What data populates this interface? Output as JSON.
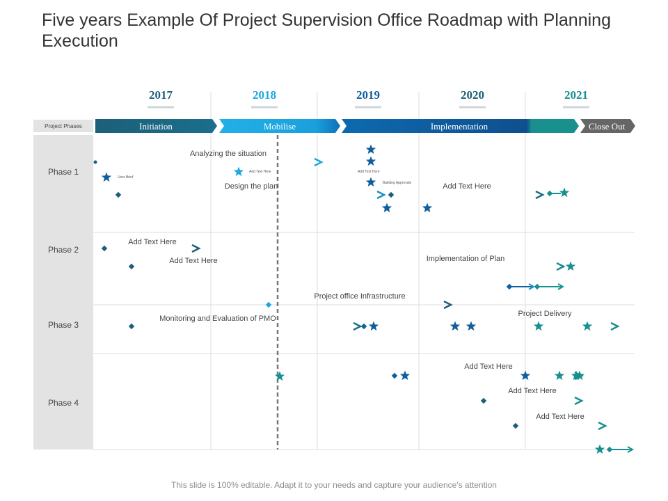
{
  "title": "Five years Example Of Project Supervision Office  Roadmap with Planning Execution",
  "footer": "This slide is 100% editable. Adapt it to your needs and capture your audience's attention",
  "header_label": "Project Phases",
  "colors": {
    "dark_teal": "#1d5f78",
    "light_blue": "#1ea7e0",
    "royal_blue": "#0f5f9e",
    "teal": "#18908f",
    "gray": "#666666",
    "row_label_bg": "#e3e3e4",
    "grid": "#dddddd",
    "today_line": "#777777"
  },
  "years": [
    {
      "label": "2017",
      "color": "#1d5f78"
    },
    {
      "label": "2018",
      "color": "#1ea7e0"
    },
    {
      "label": "2019",
      "color": "#0f5f9e"
    },
    {
      "label": "2020",
      "color": "#1d5f78"
    },
    {
      "label": "2021",
      "color": "#18908f"
    }
  ],
  "phase_bars": [
    {
      "label": "Initiation",
      "color": "#1d5f78"
    },
    {
      "label": "Mobilise",
      "color": "#1ea7e0"
    },
    {
      "label": "Implementation",
      "color": "#0f5f9e"
    },
    {
      "label": "Close Out",
      "color": "#666666"
    }
  ],
  "rows": [
    {
      "label": "Phase 1"
    },
    {
      "label": "Phase 2"
    },
    {
      "label": "Phase 3"
    },
    {
      "label": "Phase 4"
    }
  ],
  "tasks": [
    {
      "label": "Analyzing the situation",
      "start": 2017.0,
      "end": 2019.1
    },
    {
      "label": "Design the plan",
      "start": 2017.2,
      "end": 2019.6
    },
    {
      "label": "Add Text Here",
      "start": 2019.6,
      "end": 2020.85
    },
    {
      "label": "Add Text Here",
      "start": 2017.1,
      "end": 2018.0
    },
    {
      "label": "Add Text Here",
      "start": 2017.4,
      "end": 2021.0
    },
    {
      "label": "Implementation of Plan",
      "start": 2017.4,
      "end": 2021.0
    },
    {
      "label": "Project office Infrastructure",
      "start": 2018.6,
      "end": 2020.3
    },
    {
      "label": "Monitoring and Evaluation of  PMO",
      "start": 2017.4,
      "end": 2019.3
    },
    {
      "label": "Project Delivery",
      "start": 2019.3,
      "end": 2021.9
    },
    {
      "label": "Add Text Here",
      "start": 2019.8,
      "end": 2021.1
    },
    {
      "label": "Add Text Here",
      "start": 2020.6,
      "end": 2021.1
    },
    {
      "label": "Add Text Here",
      "start": 2020.9,
      "end": 2021.3
    }
  ],
  "milestones": [
    {
      "label": "User Brief"
    },
    {
      "label": "Add Text Here"
    },
    {
      "label": "Add Text Here"
    },
    {
      "label": "Building Approvals"
    }
  ]
}
